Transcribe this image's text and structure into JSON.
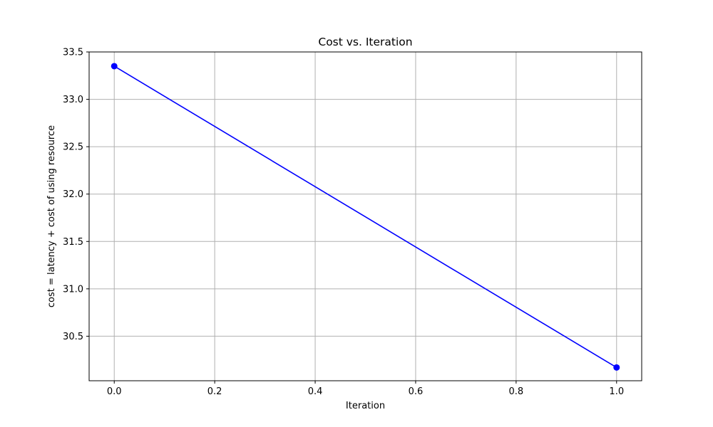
{
  "chart_data": {
    "type": "line",
    "title": "Cost vs. Iteration",
    "xlabel": "Iteration",
    "ylabel": "cost = latency + cost of using resource",
    "xlim": [
      -0.05,
      1.05
    ],
    "ylim": [
      30.03,
      33.5
    ],
    "x_ticks": [
      0.0,
      0.2,
      0.4,
      0.6,
      0.8,
      1.0
    ],
    "x_tick_labels": [
      "0.0",
      "0.2",
      "0.4",
      "0.6",
      "0.8",
      "1.0"
    ],
    "y_ticks": [
      30.5,
      31.0,
      31.5,
      32.0,
      32.5,
      33.0,
      33.5
    ],
    "y_tick_labels": [
      "30.5",
      "31.0",
      "31.5",
      "32.0",
      "32.5",
      "33.0",
      "33.5"
    ],
    "grid": true,
    "series": [
      {
        "x": [
          0,
          1
        ],
        "values": [
          33.35,
          30.17
        ],
        "color": "#0000ff",
        "marker": "circle"
      }
    ]
  }
}
